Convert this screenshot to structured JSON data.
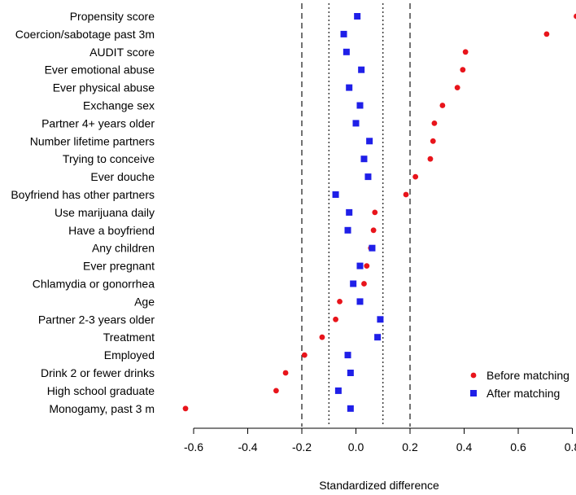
{
  "chart_data": {
    "type": "scatter",
    "title": "",
    "xlabel": "Standardized difference",
    "ylabel": "",
    "xlim": [
      -0.65,
      0.82
    ],
    "xticks": [
      -0.6,
      -0.4,
      -0.2,
      0.0,
      0.2,
      0.4,
      0.6,
      0.8
    ],
    "xtick_labels": [
      "-0.6",
      "-0.4",
      "-0.2",
      "0.0",
      "0.2",
      "0.4",
      "0.6",
      "0.8"
    ],
    "reference_lines": [
      {
        "x": -0.2,
        "style": "dashed"
      },
      {
        "x": -0.1,
        "style": "dotted"
      },
      {
        "x": 0.1,
        "style": "dotted"
      },
      {
        "x": 0.2,
        "style": "dashed"
      }
    ],
    "legend_position": "bottom-right",
    "categories": [
      "Propensity score",
      "Coercion/sabotage past 3m",
      "AUDIT score",
      "Ever emotional abuse",
      "Ever physical abuse",
      "Exchange sex",
      "Partner 4+ years older",
      "Number lifetime partners",
      "Trying to conceive",
      "Ever douche",
      "Boyfriend has other partners",
      "Use marijuana daily",
      "Have a boyfriend",
      "Any children",
      "Ever pregnant",
      "Chlamydia or gonorrhea",
      "Age",
      "Partner 2-3 years older",
      "Treatment",
      "Employed",
      "Drink 2 or fewer drinks",
      "High school graduate",
      "Monogamy, past 3 m"
    ],
    "series": [
      {
        "name": "Before matching",
        "marker": "circle",
        "color": "#e8141b",
        "values": [
          0.815,
          0.705,
          0.405,
          0.395,
          0.375,
          0.32,
          0.29,
          0.285,
          0.275,
          0.22,
          0.185,
          0.07,
          0.065,
          0.055,
          0.04,
          0.03,
          -0.06,
          -0.075,
          -0.125,
          -0.19,
          -0.26,
          -0.295,
          -0.63
        ]
      },
      {
        "name": "After matching",
        "marker": "square",
        "color": "#1f1fe8",
        "values": [
          0.005,
          -0.045,
          -0.035,
          0.02,
          -0.025,
          0.015,
          0.0,
          0.05,
          0.03,
          0.045,
          -0.075,
          -0.025,
          -0.03,
          0.06,
          0.015,
          -0.01,
          0.015,
          0.09,
          0.08,
          -0.03,
          -0.02,
          -0.065,
          -0.02
        ]
      }
    ]
  }
}
